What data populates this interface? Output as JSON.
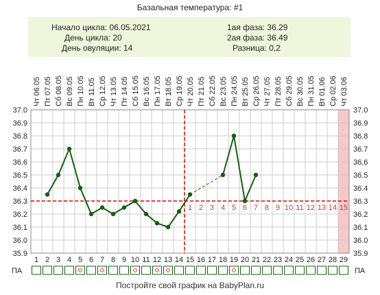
{
  "title": "Базальная температура: #1",
  "info": {
    "cycle_start": "Начало цикла: 06.05.2021",
    "cycle_day": "День цикла: 20",
    "ovulation_day": "День овуляции: 14",
    "phase1": "1ая фаза: 36.29",
    "phase2": "2ая фаза: 36.49",
    "difference": "Разница: 0,2"
  },
  "footer": "Постройте свой график на BabyPlan.ru",
  "pa_label": "ПА",
  "colors": {
    "line": "#1a5c12",
    "marker": "#1a5c12",
    "dashed_red": "#dd0000",
    "phase_numbers": "#c04040",
    "highlight_column": "#f6c8c8",
    "pa_box": "#1a5c12",
    "pa_dot": "#dd3333",
    "info_bg": "#eef6dc"
  },
  "chart_data": {
    "type": "line",
    "title": "Базальная температура: #1",
    "x": [
      1,
      2,
      3,
      4,
      5,
      6,
      7,
      8,
      9,
      10,
      11,
      12,
      13,
      14,
      15,
      16,
      17,
      18,
      19,
      20,
      21,
      22,
      23,
      24,
      25,
      26,
      27,
      28,
      29
    ],
    "days": [
      "1",
      "2",
      "3",
      "4",
      "5",
      "6",
      "7",
      "8",
      "9",
      "10",
      "11",
      "12",
      "13",
      "14",
      "15",
      "16",
      "17",
      "18",
      "19",
      "20",
      "21",
      "22",
      "23",
      "24",
      "25",
      "26",
      "27",
      "28",
      "29"
    ],
    "dates": [
      "Чт 06.05",
      "Пт 07.05",
      "Сб 08.05",
      "Вс 09.05",
      "Пн 10.05",
      "Вт 11.05",
      "Ср 12.05",
      "Чт 13.05",
      "Пт 14.05",
      "Сб 15.05",
      "Вс 16.05",
      "Пн 17.05",
      "Вт 18.05",
      "Ср 19.05",
      "Чт 20.05",
      "Пт 21.05",
      "Сб 22.05",
      "Вс 23.05",
      "Пн 24.05",
      "Вт 25.05",
      "Ср 26.05",
      "Чт 27.05",
      "Пт 28.05",
      "Сб 29.05",
      "Вс 30.05",
      "Пн 31.05",
      "Вт 01.06",
      "Ср 02.06",
      "Чт 03.06"
    ],
    "series": [
      {
        "values": [
          null,
          36.35,
          36.5,
          36.7,
          36.4,
          36.2,
          36.25,
          36.2,
          36.25,
          36.3,
          36.2,
          36.13,
          36.1,
          36.22,
          36.35,
          null,
          null,
          36.5,
          36.8,
          36.3,
          36.5,
          null,
          null,
          null,
          null,
          null,
          null,
          null,
          null
        ]
      }
    ],
    "gaps_dashed": [
      [
        15,
        18
      ]
    ],
    "ylim": [
      35.9,
      37.0
    ],
    "yticks": [
      "35.9",
      "36.0",
      "36.1",
      "36.2",
      "36.3",
      "36.4",
      "36.5",
      "36.6",
      "36.7",
      "36.8",
      "36.9",
      "37.0"
    ],
    "coverline": 36.3,
    "ovulation_day": 14,
    "highlight_day": 29,
    "phase2_days": [
      "1",
      "2",
      "3",
      "4",
      "5",
      "6",
      "7",
      "8",
      "9",
      "10",
      "11",
      "12",
      "13",
      "14",
      "15"
    ],
    "pa_days": [
      5,
      7,
      10,
      12,
      13,
      19
    ],
    "grid": true
  }
}
